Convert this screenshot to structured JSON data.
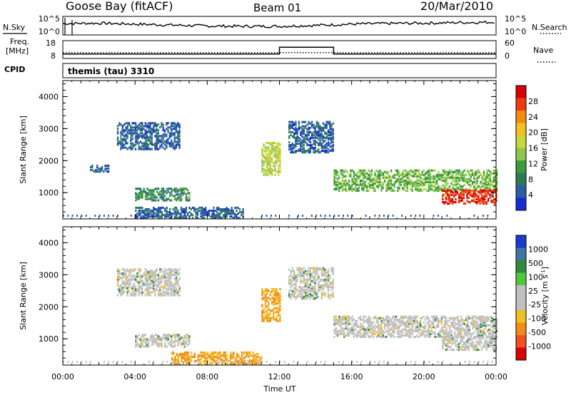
{
  "header": {
    "station": "Goose Bay (fitACF)",
    "beam": "Beam 01",
    "date": "20/Mar/2010"
  },
  "noise_panel": {
    "left_label": "N.Sky",
    "right_label": "N.Search",
    "left_ticks": [
      "10^5",
      "10^0"
    ],
    "right_ticks": [
      "10^5",
      "10^0"
    ]
  },
  "freq_panel": {
    "left_label_1": "Freq.",
    "left_label_2": "[MHz]",
    "right_label": "Nave",
    "left_ticks": [
      "18",
      "8"
    ],
    "right_ticks": [
      "60",
      "0"
    ]
  },
  "cpid_panel": {
    "label": "CPID",
    "program": "themis (tau) 3310"
  },
  "power_panel": {
    "ylabel": "Slant Range [km]",
    "colorbar_label": "Power [dB]",
    "colorbar_ticks": [
      "28",
      "24",
      "20",
      "16",
      "12",
      "8",
      "4"
    ],
    "colorbar_colors": [
      "#d80000",
      "#ef3a10",
      "#f68a10",
      "#f2c020",
      "#c8d73a",
      "#8cc850",
      "#3c9b3c",
      "#2d7a5a",
      "#2a5fa5",
      "#1a2ad8"
    ]
  },
  "velocity_panel": {
    "ylabel": "Slant Range [km]",
    "colorbar_label": "Velocity [m s^-1]",
    "colorbar_ticks": [
      "1000",
      "500",
      "100",
      "25",
      "-25",
      "-100",
      "-500",
      "-1000"
    ],
    "colorbar_colors": [
      "#1a3ad0",
      "#3c78a0",
      "#2f8a3c",
      "#4fc83c",
      "#c0c0c0",
      "#c0c0c0",
      "#f0c020",
      "#f08c18",
      "#ef5020",
      "#d80000"
    ]
  },
  "axes": {
    "xlabel": "Time UT",
    "xticks": [
      "00:00",
      "04:00",
      "08:00",
      "12:00",
      "16:00",
      "20:00",
      "00:00"
    ],
    "yticks": [
      "1000",
      "2000",
      "3000",
      "4000"
    ]
  },
  "chart_data": {
    "type": "heatmap",
    "x_unit": "hours UT",
    "y_unit": "km",
    "xlim": [
      0,
      24
    ],
    "ylim": [
      180,
      4500
    ],
    "noise_series": [
      {
        "name": "N.Sky",
        "x": [
          0,
          2,
          4,
          6,
          8,
          10,
          12,
          14,
          16,
          18,
          20,
          22,
          24
        ],
        "y": [
          3.2,
          3.3,
          3.0,
          2.7,
          2.4,
          2.3,
          2.3,
          2.6,
          3.0,
          3.2,
          3.3,
          3.5,
          3.6
        ]
      }
    ],
    "frequency_series": [
      {
        "name": "Freq.",
        "x": [
          0,
          12,
          12,
          15,
          15,
          24
        ],
        "y": [
          10,
          10,
          14.5,
          14.5,
          10,
          10
        ]
      },
      {
        "name": "Nave",
        "x": [
          0,
          12,
          12,
          15,
          15,
          24
        ],
        "y": [
          18,
          18,
          18,
          18,
          18,
          18
        ]
      }
    ],
    "power_regions": [
      {
        "x": [
          1.5,
          2.5
        ],
        "y": [
          1650,
          1850
        ],
        "value": 4
      },
      {
        "x": [
          3.0,
          6.5
        ],
        "y": [
          2350,
          3200
        ],
        "value": 4
      },
      {
        "x": [
          4.0,
          7.0
        ],
        "y": [
          750,
          1150
        ],
        "value": 8
      },
      {
        "x": [
          4.0,
          10.0
        ],
        "y": [
          200,
          550
        ],
        "value": 4
      },
      {
        "x": [
          11.0,
          12.0
        ],
        "y": [
          1550,
          2550
        ],
        "value": 16
      },
      {
        "x": [
          12.5,
          15.0
        ],
        "y": [
          2250,
          3200
        ],
        "value": 4
      },
      {
        "x": [
          15.0,
          24.0
        ],
        "y": [
          1050,
          1700
        ],
        "value": 12
      },
      {
        "x": [
          21.0,
          24.0
        ],
        "y": [
          650,
          1100
        ],
        "value": 28
      }
    ],
    "velocity_regions": [
      {
        "x": [
          3.0,
          6.5
        ],
        "y": [
          2350,
          3200
        ],
        "value": 0
      },
      {
        "x": [
          4.0,
          7.0
        ],
        "y": [
          750,
          1150
        ],
        "value": 0
      },
      {
        "x": [
          6.0,
          11.0
        ],
        "y": [
          200,
          600
        ],
        "value": -100
      },
      {
        "x": [
          11.0,
          12.0
        ],
        "y": [
          1550,
          2550
        ],
        "value": -100
      },
      {
        "x": [
          12.5,
          15.0
        ],
        "y": [
          2250,
          3200
        ],
        "value": 0
      },
      {
        "x": [
          15.0,
          24.0
        ],
        "y": [
          1050,
          1700
        ],
        "value": 0
      },
      {
        "x": [
          21.0,
          24.0
        ],
        "y": [
          650,
          1100
        ],
        "value": 0
      }
    ]
  }
}
